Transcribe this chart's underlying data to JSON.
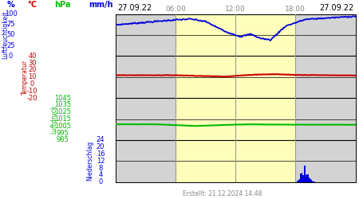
{
  "title_top_left": "27.09.22",
  "title_top_right": "27.09.22",
  "footer_text": "Erstellt: 21.12.2024 14:48",
  "time_labels": [
    "06:00",
    "12:00",
    "18:00"
  ],
  "ylabel_left1": "Luftfeuchtigkeit",
  "ylabel_left2": "Temperatur",
  "ylabel_left3": "Luftdruck",
  "ylabel_left4": "Niederschlag",
  "unit1": "%",
  "unit2": "°C",
  "unit3": "hPa",
  "unit4": "mm/h",
  "yticks_pct": [
    0,
    25,
    50,
    75,
    100
  ],
  "yticks_temp": [
    -20,
    -10,
    0,
    10,
    20,
    30,
    40
  ],
  "yticks_hpa": [
    985,
    995,
    1005,
    1015,
    1025,
    1035,
    1045
  ],
  "yticks_mmh": [
    0,
    4,
    8,
    12,
    16,
    20,
    24
  ],
  "bg_night": "#d3d3d3",
  "bg_day": "#ffffbb",
  "color_humidity": "#0000dd",
  "color_temp": "#cc0000",
  "color_pressure": "#00bb00",
  "color_precip": "#0000dd",
  "color_gridline": "#000000",
  "color_timegrid": "#999999",
  "pct_min": 0,
  "pct_max": 100,
  "temp_min": -20,
  "temp_max": 40,
  "hpa_min": 985,
  "hpa_max": 1045,
  "mmh_min": 0,
  "mmh_max": 24
}
